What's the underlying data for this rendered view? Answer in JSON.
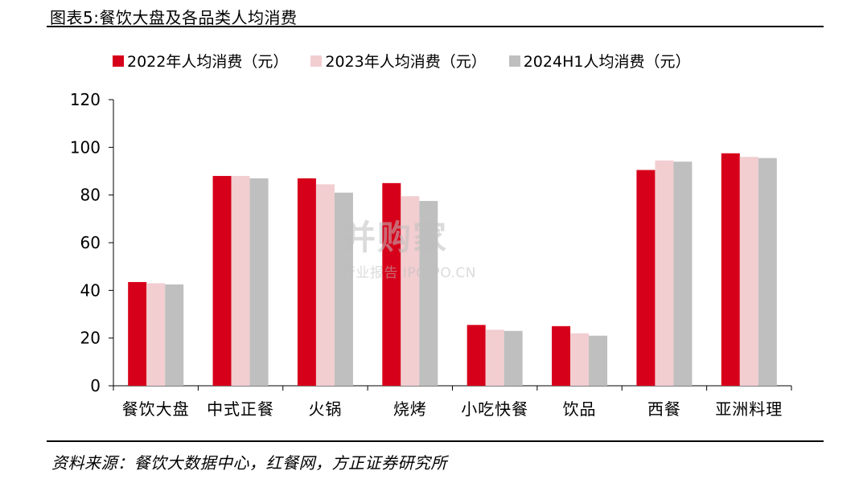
{
  "title": "图表5:餐饮大盘及各品类人均消费",
  "source": "资料来源：餐饮大数据中心，红餐网，方正证券研究所",
  "watermark": {
    "main": "并购家",
    "sub": "行业报告 IPOIPO.CN"
  },
  "chart_data": {
    "type": "bar",
    "categories": [
      "餐饮大盘",
      "中式正餐",
      "火锅",
      "烧烤",
      "小吃快餐",
      "饮品",
      "西餐",
      "亚洲料理"
    ],
    "series": [
      {
        "name": "2022年人均消费（元）",
        "color": "#D7001A",
        "values": [
          43.5,
          88,
          87,
          85,
          25.5,
          25,
          90.5,
          97.5
        ]
      },
      {
        "name": "2023年人均消费（元）",
        "color": "#F2CED1",
        "values": [
          43,
          88,
          84.5,
          79.5,
          23.5,
          22,
          94.5,
          96
        ]
      },
      {
        "name": "2024H1人均消费（元）",
        "color": "#BFBFBF",
        "values": [
          42.5,
          87,
          81,
          77.5,
          23,
          21,
          94,
          95.5
        ]
      }
    ],
    "yticks": [
      0,
      20,
      40,
      60,
      80,
      100,
      120
    ],
    "ylim": [
      0,
      120
    ],
    "legend_position": "top",
    "grid": false
  }
}
